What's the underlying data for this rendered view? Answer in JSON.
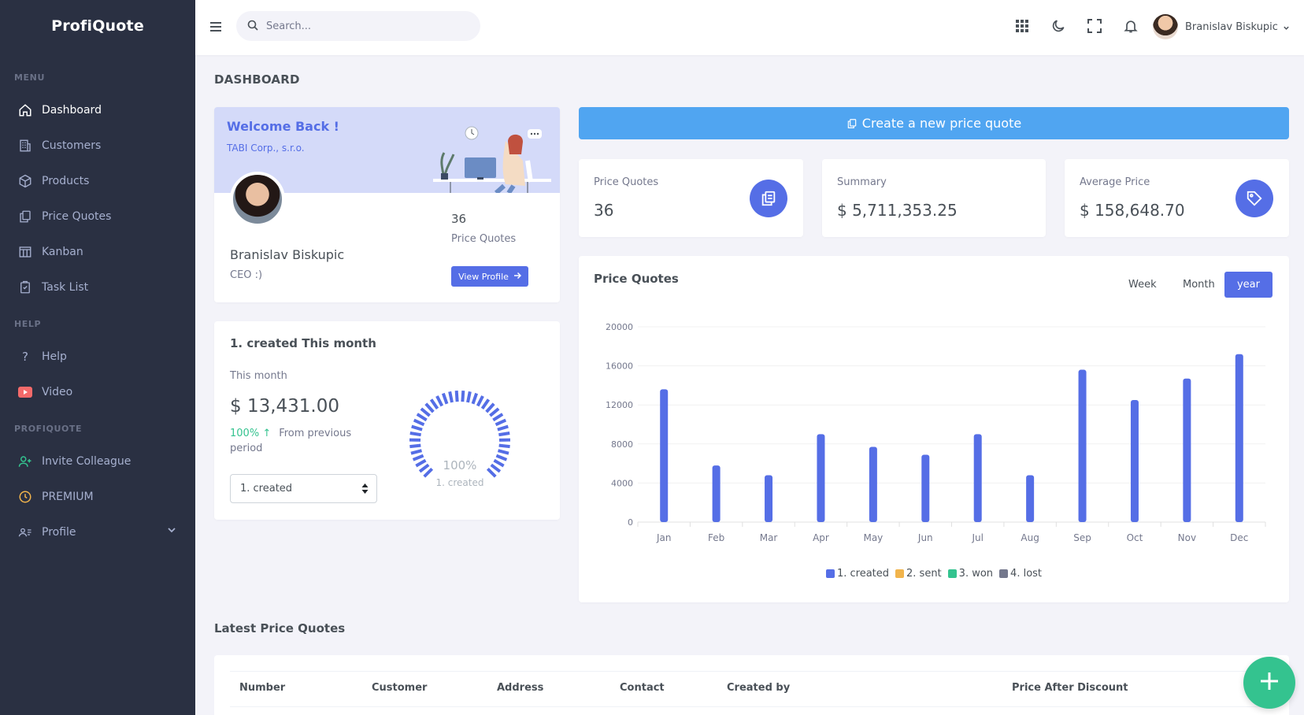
{
  "brand": "ProfiQuote",
  "sidebar": {
    "sections": [
      {
        "title": "MENU",
        "items": [
          {
            "label": "Dashboard",
            "icon": "home-icon"
          },
          {
            "label": "Customers",
            "icon": "building-icon"
          },
          {
            "label": "Products",
            "icon": "box-icon"
          },
          {
            "label": "Price Quotes",
            "icon": "copy-icon"
          },
          {
            "label": "Kanban",
            "icon": "kanban-icon"
          },
          {
            "label": "Task List",
            "icon": "clipboard-icon"
          }
        ]
      },
      {
        "title": "HELP",
        "items": [
          {
            "label": "Help",
            "icon": "question-icon"
          },
          {
            "label": "Video",
            "icon": "youtube-icon"
          }
        ]
      },
      {
        "title": "PROFIQUOTE",
        "items": [
          {
            "label": "Invite Colleague",
            "icon": "user-plus-icon"
          },
          {
            "label": "PREMIUM",
            "icon": "clock-icon"
          },
          {
            "label": "Profile",
            "icon": "user-list-icon"
          }
        ]
      }
    ]
  },
  "topbar": {
    "search_placeholder": "Search...",
    "user_name": "Branislav Biskupic"
  },
  "page_title": "DASHBOARD",
  "welcome": {
    "title": "Welcome Back !",
    "company": "TABI Corp., s.r.o.",
    "name": "Branislav Biskupic",
    "role": "CEO :)",
    "quotes_count": "36",
    "quotes_label": "Price Quotes",
    "view_profile": "View Profile"
  },
  "month_card": {
    "title": "1. created This month",
    "subtitle": "This month",
    "value": "$ 13,431.00",
    "change_pct": "100%",
    "change_text": "From previous period",
    "select_value": "1. created",
    "gauge_value": "100%",
    "gauge_label": "1. created",
    "gauge_fraction": 1.0
  },
  "create_button": "Create a new price quote",
  "stats": [
    {
      "label": "Price Quotes",
      "value": "36",
      "icon": "copy-icon"
    },
    {
      "label": "Summary",
      "value": "$ 5,711,353.25",
      "icon": ""
    },
    {
      "label": "Average Price",
      "value": "$ 158,648.70",
      "icon": "tag-icon"
    }
  ],
  "chart_card": {
    "title": "Price Quotes",
    "ranges": [
      "Week",
      "Month",
      "year"
    ],
    "active_range": "year"
  },
  "chart_data": {
    "type": "bar",
    "categories": [
      "Jan",
      "Feb",
      "Mar",
      "Apr",
      "May",
      "Jun",
      "Jul",
      "Aug",
      "Sep",
      "Oct",
      "Nov",
      "Dec"
    ],
    "series": [
      {
        "name": "1. created",
        "color": "#556ee6",
        "values": [
          13600,
          5800,
          4800,
          9000,
          7700,
          6900,
          9000,
          4800,
          15600,
          12500,
          14700,
          17200
        ]
      },
      {
        "name": "2. sent",
        "color": "#f1b44c",
        "values": [
          0,
          0,
          0,
          0,
          0,
          0,
          0,
          0,
          0,
          0,
          0,
          0
        ]
      },
      {
        "name": "3. won",
        "color": "#34c38f",
        "values": [
          0,
          0,
          0,
          0,
          0,
          0,
          0,
          0,
          0,
          0,
          0,
          0
        ]
      },
      {
        "name": "4. lost",
        "color": "#74788d",
        "values": [
          0,
          0,
          0,
          0,
          0,
          0,
          0,
          0,
          0,
          0,
          0,
          0
        ]
      }
    ],
    "yticks": [
      0,
      4000,
      8000,
      12000,
      16000,
      20000
    ],
    "ylim": [
      0,
      20000
    ],
    "legend_position": "bottom",
    "grid": true
  },
  "latest": {
    "title": "Latest Price Quotes",
    "columns": [
      "Number",
      "Customer",
      "Address",
      "Contact",
      "Created by",
      "Price After Discount"
    ]
  }
}
